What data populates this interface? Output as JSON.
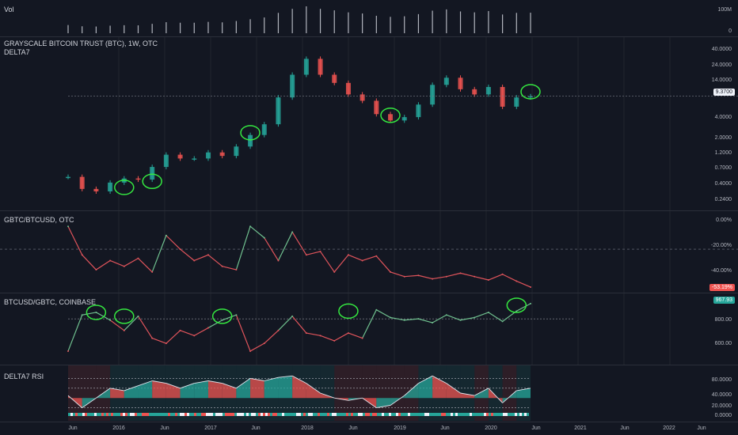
{
  "panes": {
    "volume": {
      "label": "Vol",
      "ticks": [
        "100M",
        "0"
      ]
    },
    "price": {
      "title": "GRAYSCALE BITCOIN TRUST (BTC), 1W, OTC",
      "subtitle": "DELTA7",
      "ticks": [
        "40.0000",
        "24.0000",
        "14.0000",
        "4.0000",
        "2.0000",
        "1.2000",
        "0.7000",
        "0.4000",
        "0.2400"
      ],
      "last_price": "9.3700"
    },
    "ratio": {
      "title": "GBTC/BTCUSD, OTC",
      "ticks": [
        "0.00%",
        "-20.00%",
        "-40.00%"
      ],
      "last_value": "-53.19%"
    },
    "inverse": {
      "title": "BTCUSD/GBTC, COINBASE",
      "ticks": [
        "800.00",
        "600.00"
      ],
      "last_value": "967.93"
    },
    "rsi": {
      "title": "DELTA7 RSI",
      "ticks": [
        "80.0000",
        "40.0000",
        "20.0000",
        "0.0000"
      ]
    }
  },
  "x_axis": [
    "Jun",
    "2016",
    "Jun",
    "2017",
    "Jun",
    "2018",
    "Jun",
    "2019",
    "Jun",
    "2020",
    "Jun",
    "2021",
    "Jun",
    "2022",
    "Jun"
  ],
  "colors": {
    "up": "#26a69a",
    "down": "#ef5350",
    "line_up": "#6fbf8e",
    "line_down": "#e0545b",
    "annotation": "#35e840",
    "grid": "#2a2e39",
    "background": "#131722"
  },
  "chart_data": [
    {
      "type": "candlestick",
      "title": "GRAYSCALE BITCOIN TRUST (BTC), 1W, OTC",
      "scale": "log",
      "ylim": [
        0.2,
        60
      ],
      "x": [
        "2015-05",
        "2015-07",
        "2015-09",
        "2015-11",
        "2016-01",
        "2016-03",
        "2016-05",
        "2016-07",
        "2016-09",
        "2016-11",
        "2017-01",
        "2017-03",
        "2017-05",
        "2017-06",
        "2017-08",
        "2017-10",
        "2017-12",
        "2018-01",
        "2018-03",
        "2018-05",
        "2018-07",
        "2018-09",
        "2018-11",
        "2018-12",
        "2019-02",
        "2019-04",
        "2019-06",
        "2019-08",
        "2019-10",
        "2019-12",
        "2020-02",
        "2020-03",
        "2020-05",
        "2020-06"
      ],
      "values": [
        0.55,
        0.36,
        0.33,
        0.45,
        0.52,
        0.5,
        0.78,
        1.2,
        1.05,
        1.05,
        1.3,
        1.15,
        1.6,
        2.4,
        3.5,
        9.0,
        20.0,
        35.0,
        20.0,
        15.0,
        10.0,
        8.0,
        5.0,
        4.0,
        4.5,
        7.0,
        14.0,
        18.0,
        12.0,
        10.0,
        13.0,
        6.5,
        9.0,
        9.37
      ]
    },
    {
      "type": "line",
      "title": "GBTC/BTCUSD, OTC",
      "ylim": [
        -56,
        5
      ],
      "x": [
        "2015-05",
        "2015-07",
        "2015-09",
        "2015-11",
        "2016-01",
        "2016-03",
        "2016-05",
        "2016-07",
        "2016-09",
        "2016-11",
        "2017-01",
        "2017-03",
        "2017-05",
        "2017-06",
        "2017-08",
        "2017-10",
        "2017-12",
        "2018-01",
        "2018-03",
        "2018-05",
        "2018-07",
        "2018-09",
        "2018-11",
        "2018-12",
        "2019-02",
        "2019-04",
        "2019-06",
        "2019-08",
        "2019-10",
        "2019-12",
        "2020-02",
        "2020-03",
        "2020-05",
        "2020-06"
      ],
      "values": [
        0,
        -25,
        -38,
        -30,
        -35,
        -28,
        -40,
        -8,
        -20,
        -30,
        -25,
        -35,
        -38,
        0,
        -10,
        -30,
        -5,
        -25,
        -22,
        -40,
        -25,
        -30,
        -26,
        -40,
        -44,
        -43,
        -46,
        -44,
        -41,
        -44,
        -47,
        -42,
        -48,
        -53.19
      ]
    },
    {
      "type": "line",
      "title": "BTCUSD/GBTC, COINBASE",
      "ylim": [
        520,
        1010
      ],
      "x": [
        "2015-05",
        "2015-07",
        "2015-09",
        "2015-11",
        "2016-01",
        "2016-03",
        "2016-05",
        "2016-07",
        "2016-09",
        "2016-11",
        "2017-01",
        "2017-03",
        "2017-05",
        "2017-06",
        "2017-08",
        "2017-10",
        "2017-12",
        "2018-01",
        "2018-03",
        "2018-05",
        "2018-07",
        "2018-09",
        "2018-11",
        "2018-12",
        "2019-02",
        "2019-04",
        "2019-06",
        "2019-08",
        "2019-10",
        "2019-12",
        "2020-02",
        "2020-03",
        "2020-05",
        "2020-06"
      ],
      "values": [
        600,
        880,
        900,
        840,
        760,
        870,
        700,
        660,
        760,
        720,
        780,
        840,
        880,
        600,
        660,
        760,
        870,
        740,
        720,
        680,
        740,
        700,
        920,
        860,
        840,
        850,
        820,
        880,
        840,
        860,
        900,
        830,
        910,
        967.93
      ]
    },
    {
      "type": "area",
      "title": "DELTA7 RSI",
      "ylim": [
        0,
        100
      ],
      "x": [
        "2015-05",
        "2015-07",
        "2015-09",
        "2015-11",
        "2016-01",
        "2016-03",
        "2016-05",
        "2016-07",
        "2016-09",
        "2016-11",
        "2017-01",
        "2017-03",
        "2017-05",
        "2017-06",
        "2017-08",
        "2017-10",
        "2017-12",
        "2018-01",
        "2018-03",
        "2018-05",
        "2018-07",
        "2018-09",
        "2018-11",
        "2018-12",
        "2019-02",
        "2019-04",
        "2019-06",
        "2019-08",
        "2019-10",
        "2019-12",
        "2020-02",
        "2020-03",
        "2020-05",
        "2020-06"
      ],
      "values": [
        45,
        20,
        40,
        60,
        55,
        65,
        75,
        70,
        60,
        70,
        75,
        70,
        60,
        80,
        75,
        82,
        85,
        70,
        50,
        40,
        35,
        40,
        20,
        25,
        45,
        70,
        85,
        70,
        50,
        45,
        60,
        30,
        55,
        60
      ]
    }
  ]
}
